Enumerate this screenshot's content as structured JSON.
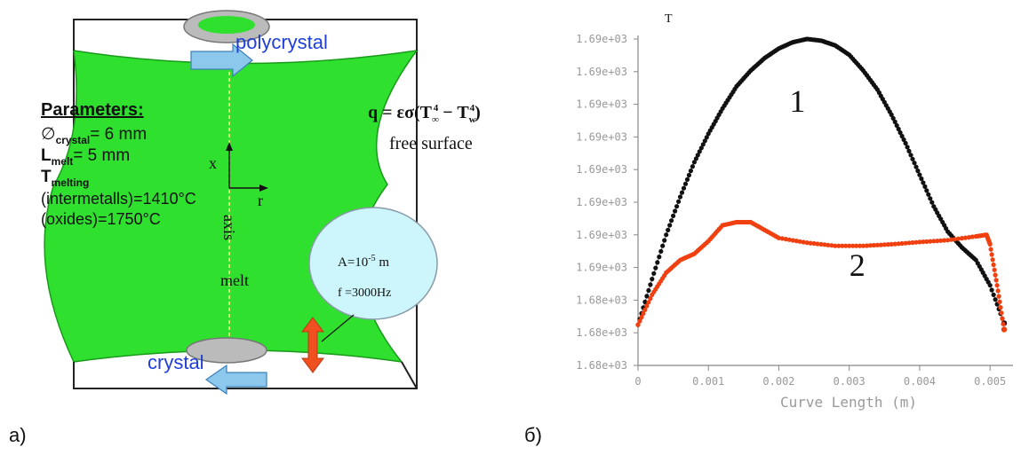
{
  "panel_a": {
    "caption": "а)",
    "label_polycrystal": "polycrystal",
    "label_crystal": "crystal",
    "parameters_title": "Parameters:",
    "param_lines": [
      {
        "main": "∅",
        "sub": "crystal",
        "rest": "= 6 mm"
      },
      {
        "main": "L",
        "sub": "melt",
        "rest": "= 5 mm"
      },
      {
        "main": "T",
        "sub": "melting",
        "rest": ""
      }
    ],
    "param_intermetalls": "(intermetalls)=1410°C",
    "param_oxides": "(oxides)=1750°C",
    "formula_lhs": "q = εσ(T",
    "formula_sub1": "∞",
    "formula_sup1": "4",
    "formula_mid": " − T",
    "formula_sub2": "w",
    "formula_sup2": "4",
    "formula_rhs": ")",
    "free_surface": "free surface",
    "axis_x": "x",
    "axis_r": "r",
    "axis_label": "axis",
    "melt_label": "melt",
    "amplitude_base": "A=10",
    "amplitude_exp": "-5",
    "amplitude_unit": " m",
    "frequency": "f =3000Hz",
    "colors": {
      "melt_green": "#2fe02f",
      "arrow_blue": "#8cc8ec",
      "text_blue": "#1f3fd8",
      "bubble": "#ccf6fb",
      "vib_arrow": "#f05020"
    }
  },
  "panel_b": {
    "caption": "б)",
    "chart_data": {
      "type": "scatter",
      "title": "T",
      "xlabel": "Curve Length (m)",
      "ylabel": "",
      "xlim": [
        0,
        0.0052
      ],
      "x_ticks": [
        "0",
        "0.001",
        "0.002",
        "0.003",
        "0.004",
        "0.005"
      ],
      "x_tick_values": [
        0,
        0.001,
        0.002,
        0.003,
        0.004,
        0.005
      ],
      "y_ticks": [
        "1.69e+03",
        "1.69e+03",
        "1.69e+03",
        "1.69e+03",
        "1.69e+03",
        "1.69e+03",
        "1.69e+03",
        "1.69e+03",
        "1.68e+03",
        "1.68e+03",
        "1.68e+03"
      ],
      "ylim_norm": [
        0,
        1
      ],
      "series": [
        {
          "name": "1",
          "color": "#111111",
          "points": [
            [
              0,
              0.095
            ],
            [
              0.0002,
              0.24
            ],
            [
              0.0004,
              0.38
            ],
            [
              0.0006,
              0.5
            ],
            [
              0.0008,
              0.61
            ],
            [
              0.001,
              0.7
            ],
            [
              0.0012,
              0.78
            ],
            [
              0.0014,
              0.85
            ],
            [
              0.0016,
              0.9
            ],
            [
              0.0018,
              0.94
            ],
            [
              0.002,
              0.97
            ],
            [
              0.0022,
              0.99
            ],
            [
              0.0024,
              1.0
            ],
            [
              0.0026,
              0.995
            ],
            [
              0.0028,
              0.98
            ],
            [
              0.003,
              0.95
            ],
            [
              0.0032,
              0.9
            ],
            [
              0.0034,
              0.84
            ],
            [
              0.0036,
              0.76
            ],
            [
              0.0038,
              0.67
            ],
            [
              0.004,
              0.57
            ],
            [
              0.0042,
              0.47
            ],
            [
              0.0044,
              0.39
            ],
            [
              0.0046,
              0.34
            ],
            [
              0.0048,
              0.3
            ],
            [
              0.005,
              0.22
            ],
            [
              0.0052,
              0.1
            ]
          ]
        },
        {
          "name": "2",
          "color": "#f04010",
          "points": [
            [
              0,
              0.095
            ],
            [
              0.0002,
              0.19
            ],
            [
              0.0004,
              0.26
            ],
            [
              0.0006,
              0.3
            ],
            [
              0.0008,
              0.32
            ],
            [
              0.001,
              0.36
            ],
            [
              0.0012,
              0.41
            ],
            [
              0.0014,
              0.42
            ],
            [
              0.0016,
              0.42
            ],
            [
              0.0018,
              0.395
            ],
            [
              0.002,
              0.37
            ],
            [
              0.0024,
              0.355
            ],
            [
              0.0028,
              0.345
            ],
            [
              0.0032,
              0.345
            ],
            [
              0.0036,
              0.35
            ],
            [
              0.004,
              0.357
            ],
            [
              0.0044,
              0.363
            ],
            [
              0.0048,
              0.375
            ],
            [
              0.00495,
              0.38
            ],
            [
              0.005,
              0.35
            ],
            [
              0.0051,
              0.22
            ],
            [
              0.0052,
              0.08
            ]
          ]
        }
      ],
      "annotations": [
        {
          "text": "1",
          "x": 0.00215,
          "y": 0.77
        },
        {
          "text": "2",
          "x": 0.003,
          "y": 0.25
        }
      ]
    }
  }
}
